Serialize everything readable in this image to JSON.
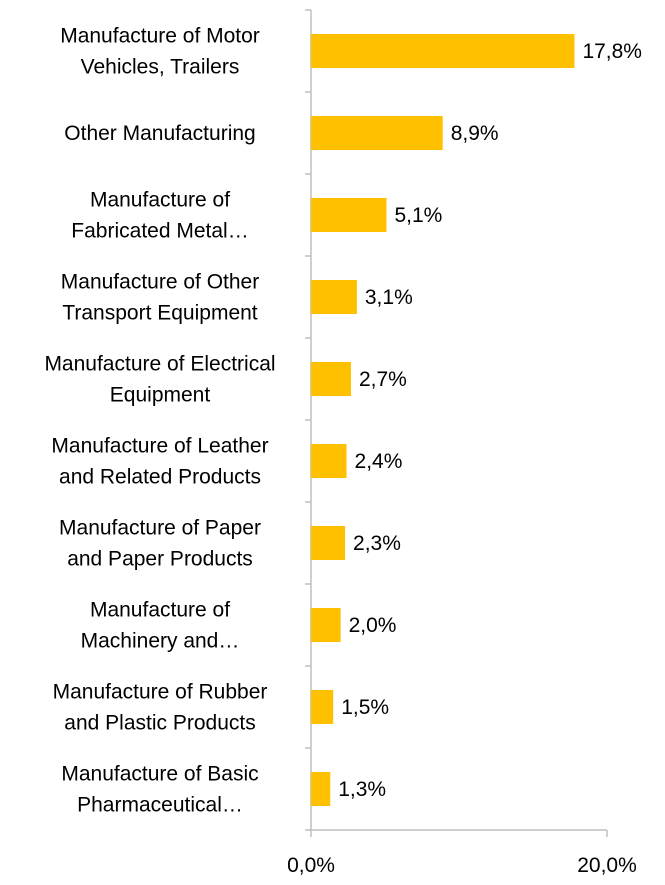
{
  "chart_data": {
    "type": "bar",
    "orientation": "horizontal",
    "categories": [
      [
        "Manufacture of Motor",
        "Vehicles, Trailers"
      ],
      [
        "Other Manufacturing"
      ],
      [
        "Manufacture of",
        "Fabricated Metal…"
      ],
      [
        "Manufacture of Other",
        "Transport Equipment"
      ],
      [
        "Manufacture of Electrical",
        "Equipment"
      ],
      [
        "Manufacture of Leather",
        "and Related Products"
      ],
      [
        "Manufacture of Paper",
        "and Paper Products"
      ],
      [
        "Manufacture of",
        "Machinery and…"
      ],
      [
        "Manufacture of Rubber",
        "and Plastic Products"
      ],
      [
        "Manufacture of Basic",
        "Pharmaceutical…"
      ]
    ],
    "values": [
      17.8,
      8.9,
      5.1,
      3.1,
      2.7,
      2.4,
      2.3,
      2.0,
      1.5,
      1.3
    ],
    "data_labels": [
      "17,8%",
      "8,9%",
      "5,1%",
      "3,1%",
      "2,7%",
      "2,4%",
      "2,3%",
      "2,0%",
      "1,5%",
      "1,3%"
    ],
    "xlim": [
      0,
      20
    ],
    "x_ticks": [
      0,
      20
    ],
    "x_tick_labels": [
      "0,0%",
      "20,0%"
    ],
    "grid": false,
    "legend": "none",
    "bar_color": "#FFC000",
    "axis_color": "#BFBFBF"
  }
}
